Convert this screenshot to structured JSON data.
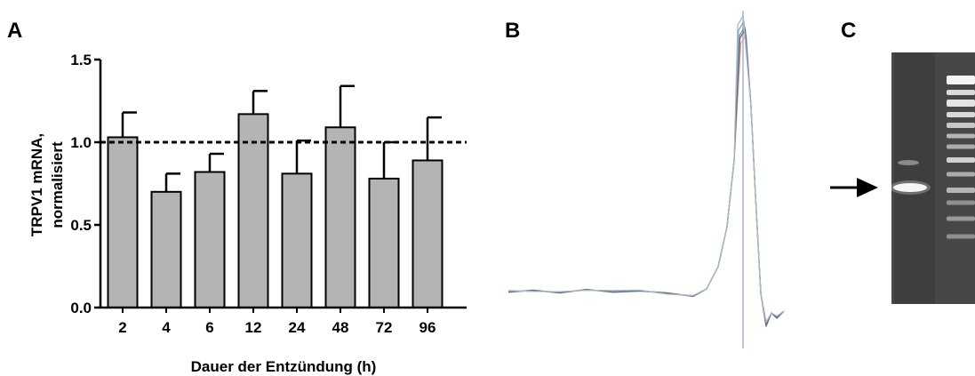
{
  "panels": {
    "a": "A",
    "b": "B",
    "c": "C"
  },
  "chart_data": [
    {
      "type": "bar",
      "panel": "A",
      "categories": [
        "2",
        "4",
        "6",
        "12",
        "24",
        "48",
        "72",
        "96"
      ],
      "values": [
        1.03,
        0.7,
        0.82,
        1.17,
        0.81,
        1.09,
        0.78,
        0.89
      ],
      "errors": [
        0.15,
        0.11,
        0.11,
        0.14,
        0.2,
        0.25,
        0.22,
        0.26
      ],
      "reference_line": 1.0,
      "xlabel": "Dauer der Entzündung (h)",
      "ylabel_line1": "TRPV1 mRNA,",
      "ylabel_line2": "normalisiert",
      "ylim": [
        0,
        1.5
      ],
      "yticks": [
        "0.0",
        "0.5",
        "1.0",
        "1.5"
      ],
      "bar_color": "#b4b4b4",
      "grid": false
    },
    {
      "type": "line",
      "panel": "B",
      "description_series": "overlaid melting curves, no axes",
      "colors": [
        "#7f8fa8",
        "#e8a18d",
        "#8aa6b8",
        "#5f6f7f",
        "#a9bccb"
      ]
    }
  ],
  "gel": {
    "panel": "C",
    "background_color": "#474747"
  }
}
